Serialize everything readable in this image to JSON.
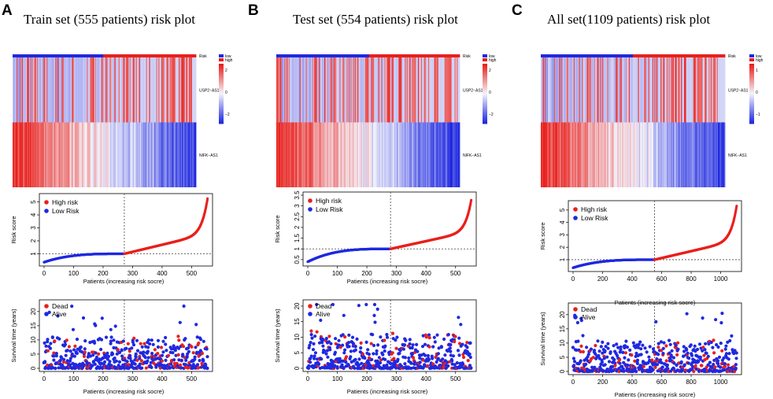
{
  "figure": {
    "colors": {
      "high": "#e8201c",
      "low": "#1f29e0",
      "mid": "#f4f4f8"
    }
  },
  "chart_data": [
    {
      "type": "composite-risk-plot",
      "panel_letter": "A",
      "title": "Train set (555 patients) risk plot",
      "n_patients": 555,
      "cutoff_index": 272,
      "heatmap": {
        "risk_label": "Risk",
        "risk_legend": [
          "low",
          "high"
        ],
        "genes": [
          "USP2−AS1",
          "NIFK−AS1"
        ],
        "colorbar_ticks": [
          "2",
          "0",
          "−2"
        ]
      },
      "risk_score": {
        "ylabel": "Risk score",
        "xlabel": "Patients (increasing risk socre)",
        "ylim": [
          0.3,
          5.4
        ],
        "yticks": [
          1,
          2,
          3,
          4,
          5
        ],
        "xticks": [
          0,
          100,
          200,
          300,
          400,
          500
        ],
        "legend": [
          "High risk",
          "Low Risk"
        ],
        "min": 0.35,
        "cutoff_value": 1.0,
        "max": 5.4
      },
      "survival": {
        "ylabel": "Survival time (years)",
        "xlabel": "Patients (increasing risk socre)",
        "ylim": [
          0,
          23
        ],
        "yticks": [
          0,
          5,
          10,
          15,
          20
        ],
        "xticks": [
          0,
          100,
          200,
          300,
          400,
          500
        ],
        "legend": [
          "Dead",
          "Alive"
        ]
      }
    },
    {
      "type": "composite-risk-plot",
      "panel_letter": "B",
      "title": "Test set (554 patients) risk plot",
      "n_patients": 554,
      "cutoff_index": 280,
      "heatmap": {
        "risk_label": "Risk",
        "risk_legend": [
          "low",
          "high"
        ],
        "genes": [
          "USP2−AS1",
          "NIFK−AS1"
        ],
        "colorbar_ticks": [
          "2",
          "0",
          "−2"
        ]
      },
      "risk_score": {
        "ylabel": "Risk score",
        "xlabel": "Patients (increasing risk socre)",
        "ylim": [
          0.35,
          3.5
        ],
        "yticks": [
          0.5,
          1.0,
          1.5,
          2.0,
          2.5,
          3.0,
          3.5
        ],
        "yticklabels": [
          "0.5",
          "1",
          "1.5",
          "2",
          "2.5",
          "3",
          "3.5"
        ],
        "xticks": [
          0,
          100,
          200,
          300,
          400,
          500
        ],
        "legend": [
          "High risk",
          "Low Risk"
        ],
        "min": 0.4,
        "cutoff_value": 1.0,
        "max": 3.35
      },
      "survival": {
        "ylabel": "Survival time (years)",
        "xlabel": "Patients (increasing risk socre)",
        "ylim": [
          0,
          21
        ],
        "yticks": [
          0,
          5,
          10,
          15,
          20
        ],
        "xticks": [
          0,
          100,
          200,
          300,
          400,
          500
        ],
        "legend": [
          "Dead",
          "Alive"
        ]
      }
    },
    {
      "type": "composite-risk-plot",
      "panel_letter": "C",
      "title": "All set(1109 patients) risk plot",
      "n_patients": 1109,
      "cutoff_index": 552,
      "heatmap": {
        "risk_label": "Risk",
        "risk_legend": [
          "low",
          "high"
        ],
        "genes": [
          "USP2−AS1",
          "NIFK−AS1"
        ],
        "colorbar_ticks": [
          "1",
          "0",
          "−1"
        ]
      },
      "risk_score": {
        "ylabel": "Risk score",
        "xlabel": "Patients (increasing risk socre)",
        "ylim": [
          0.3,
          5.5
        ],
        "yticks": [
          1,
          2,
          3,
          4,
          5
        ],
        "xticks": [
          0,
          200,
          400,
          600,
          800,
          1000
        ],
        "legend": [
          "High risk",
          "Low Risk"
        ],
        "min": 0.35,
        "cutoff_value": 1.0,
        "max": 5.4
      },
      "survival": {
        "ylabel": "Survival time (years)",
        "xlabel": "Patients (increasing risk socre)",
        "ylim": [
          0,
          23
        ],
        "yticks": [
          0,
          5,
          10,
          15,
          20
        ],
        "xticks": [
          0,
          200,
          400,
          600,
          800,
          1000
        ],
        "legend": [
          "Dead",
          "Alive"
        ]
      }
    }
  ]
}
